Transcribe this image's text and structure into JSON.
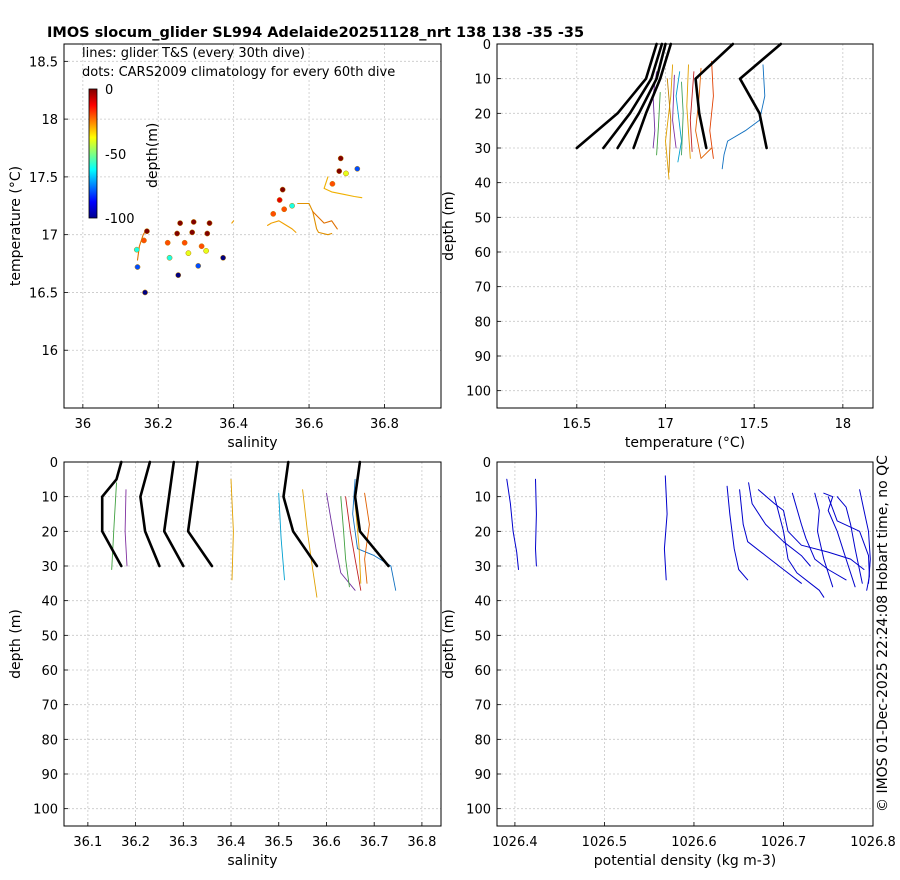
{
  "title": "IMOS slocum_glider SL994 Adelaide20251128_nrt 138  138  -35  -35",
  "legend": {
    "line1": "lines: glider T&S (every 30th dive)",
    "line2": "dots: CARS2009 climatology for every 60th dive"
  },
  "colorbar": {
    "label": "depth(m)",
    "ticks": [
      "0",
      "-50",
      "-100"
    ],
    "range": [
      -100,
      0
    ]
  },
  "footer": "© IMOS 01-Dec-2025 22:24:08 Hobart time, no QC",
  "colors": {
    "thick": "#000000",
    "density": "#0000cc",
    "grid": "#c8c8c8"
  },
  "chart_data": [
    {
      "id": "ts",
      "type": "scatter",
      "xlabel": "salinity",
      "ylabel": "temperature (°C)",
      "xlim": [
        35.95,
        36.95
      ],
      "ylim": [
        15.5,
        18.65
      ],
      "xticks": [
        36,
        36.2,
        36.4,
        36.6,
        36.8
      ],
      "yticks": [
        16,
        16.5,
        17,
        17.5,
        18,
        18.5
      ],
      "climatology_dots": [
        {
          "s": 36.165,
          "t": 16.5,
          "d": -100
        },
        {
          "s": 36.145,
          "t": 16.72,
          "d": -80
        },
        {
          "s": 36.143,
          "t": 16.87,
          "d": -60
        },
        {
          "s": 36.162,
          "t": 16.95,
          "d": -20
        },
        {
          "s": 36.17,
          "t": 17.03,
          "d": 0
        },
        {
          "s": 36.23,
          "t": 16.8,
          "d": -60
        },
        {
          "s": 36.225,
          "t": 16.93,
          "d": -20
        },
        {
          "s": 36.25,
          "t": 17.01,
          "d": 0
        },
        {
          "s": 36.258,
          "t": 17.1,
          "d": 0
        },
        {
          "s": 36.253,
          "t": 16.65,
          "d": -100
        },
        {
          "s": 36.27,
          "t": 16.93,
          "d": -20
        },
        {
          "s": 36.28,
          "t": 16.84,
          "d": -40
        },
        {
          "s": 36.29,
          "t": 17.02,
          "d": 0
        },
        {
          "s": 36.294,
          "t": 17.11,
          "d": 0
        },
        {
          "s": 36.306,
          "t": 16.73,
          "d": -80
        },
        {
          "s": 36.315,
          "t": 16.9,
          "d": -20
        },
        {
          "s": 36.327,
          "t": 16.86,
          "d": -40
        },
        {
          "s": 36.33,
          "t": 17.01,
          "d": 0
        },
        {
          "s": 36.336,
          "t": 17.1,
          "d": 0
        },
        {
          "s": 36.372,
          "t": 16.8,
          "d": -100
        },
        {
          "s": 36.505,
          "t": 17.18,
          "d": -20
        },
        {
          "s": 36.522,
          "t": 17.3,
          "d": -10
        },
        {
          "s": 36.53,
          "t": 17.39,
          "d": 0
        },
        {
          "s": 36.534,
          "t": 17.22,
          "d": -20
        },
        {
          "s": 36.555,
          "t": 17.25,
          "d": -60
        },
        {
          "s": 36.662,
          "t": 17.44,
          "d": -20
        },
        {
          "s": 36.68,
          "t": 17.55,
          "d": 0
        },
        {
          "s": 36.684,
          "t": 17.66,
          "d": 0
        },
        {
          "s": 36.698,
          "t": 17.53,
          "d": -40
        },
        {
          "s": 36.728,
          "t": 17.57,
          "d": -80
        }
      ],
      "glider_lines": [
        {
          "color": "#e07000",
          "pts": [
            [
              36.17,
              17.05
            ],
            [
              36.16,
              17.0
            ],
            [
              36.15,
              16.9
            ],
            [
              36.145,
              16.78
            ]
          ]
        },
        {
          "color": "#f0a000",
          "pts": [
            [
              36.395,
              17.1
            ],
            [
              36.4,
              17.12
            ]
          ]
        },
        {
          "color": "#f0a000",
          "pts": [
            [
              36.49,
              17.08
            ],
            [
              36.5,
              17.1
            ],
            [
              36.52,
              17.12
            ],
            [
              36.53,
              17.1
            ],
            [
              36.555,
              17.05
            ],
            [
              36.565,
              17.02
            ]
          ]
        },
        {
          "color": "#e09000",
          "pts": [
            [
              36.57,
              17.27
            ],
            [
              36.6,
              17.27
            ],
            [
              36.61,
              17.2
            ],
            [
              36.62,
              17.05
            ],
            [
              36.625,
              17.02
            ],
            [
              36.65,
              17.0
            ],
            [
              36.66,
              17.01
            ]
          ]
        },
        {
          "color": "#e07000",
          "pts": [
            [
              36.61,
              17.2
            ],
            [
              36.64,
              17.1
            ],
            [
              36.66,
              17.12
            ],
            [
              36.675,
              17.05
            ]
          ]
        },
        {
          "color": "#f0b000",
          "pts": [
            [
              36.65,
              17.5
            ],
            [
              36.64,
              17.4
            ],
            [
              36.66,
              17.37
            ],
            [
              36.69,
              17.35
            ],
            [
              36.72,
              17.33
            ],
            [
              36.74,
              17.32
            ]
          ]
        }
      ]
    },
    {
      "id": "temp_depth",
      "type": "line",
      "xlabel": "temperature (°C)",
      "ylabel": "depth (m)",
      "xlim": [
        16.05,
        18.17
      ],
      "ylim": [
        0,
        105
      ],
      "xticks": [
        16.5,
        17,
        17.5,
        18
      ],
      "yticks": [
        0,
        10,
        20,
        30,
        40,
        50,
        60,
        70,
        80,
        90,
        100
      ],
      "climatology_profiles": [
        {
          "t": [
            16.95,
            16.89,
            16.73,
            16.5
          ],
          "z": [
            0,
            10,
            20,
            30
          ]
        },
        {
          "t": [
            16.98,
            16.92,
            16.8,
            16.65
          ],
          "z": [
            0,
            10,
            20,
            30
          ]
        },
        {
          "t": [
            17.0,
            16.95,
            16.85,
            16.73
          ],
          "z": [
            0,
            10,
            20,
            30
          ]
        },
        {
          "t": [
            17.03,
            16.97,
            16.89,
            16.82
          ],
          "z": [
            0,
            10,
            20,
            30
          ]
        },
        {
          "t": [
            17.38,
            17.17,
            17.19,
            17.23
          ],
          "z": [
            0,
            10,
            20,
            30
          ]
        },
        {
          "t": [
            17.65,
            17.42,
            17.53,
            17.57
          ],
          "z": [
            0,
            10,
            20,
            30
          ]
        }
      ],
      "glider_profiles": [
        {
          "color": "#7030a0",
          "t": [
            16.95,
            16.93,
            16.94,
            16.93
          ],
          "z": [
            8,
            15,
            25,
            30
          ]
        },
        {
          "color": "#40a040",
          "t": [
            16.97,
            16.96,
            16.95
          ],
          "z": [
            14,
            24,
            32
          ]
        },
        {
          "color": "#e0a000",
          "t": [
            17.04,
            17.03,
            17.0,
            17.02
          ],
          "z": [
            6,
            15,
            28,
            39
          ]
        },
        {
          "color": "#c08000",
          "t": [
            17.01,
            17.03,
            17.02
          ],
          "z": [
            10,
            22,
            37
          ]
        },
        {
          "color": "#00a0d0",
          "t": [
            17.08,
            17.06,
            17.09,
            17.07
          ],
          "z": [
            8,
            15,
            28,
            34
          ]
        },
        {
          "color": "#8030a0",
          "t": [
            17.05,
            17.04,
            17.06
          ],
          "z": [
            9,
            22,
            30
          ]
        },
        {
          "color": "#40a060",
          "t": [
            17.09,
            17.1,
            17.09
          ],
          "z": [
            11,
            20,
            32
          ]
        },
        {
          "color": "#e0a000",
          "t": [
            17.13,
            17.12,
            17.14
          ],
          "z": [
            6,
            18,
            33
          ]
        },
        {
          "color": "#c02020",
          "t": [
            17.16,
            17.14,
            17.15
          ],
          "z": [
            8,
            22,
            31
          ]
        },
        {
          "color": "#e06000",
          "t": [
            17.2,
            17.19,
            17.17,
            17.2,
            17.26
          ],
          "z": [
            7,
            15,
            25,
            33,
            30
          ]
        },
        {
          "color": "#1070c0",
          "t": [
            17.55,
            17.56,
            17.53,
            17.45,
            17.35,
            17.33,
            17.32
          ],
          "z": [
            6,
            15,
            22,
            25,
            28,
            32,
            36
          ]
        },
        {
          "color": "#e04000",
          "t": [
            17.26,
            17.27,
            17.25,
            17.27
          ],
          "z": [
            5,
            15,
            25,
            33
          ]
        }
      ]
    },
    {
      "id": "sal_depth",
      "type": "line",
      "xlabel": "salinity",
      "ylabel": "depth (m)",
      "xlim": [
        36.05,
        36.84
      ],
      "ylim": [
        0,
        105
      ],
      "xticks": [
        36.1,
        36.2,
        36.3,
        36.4,
        36.5,
        36.6,
        36.7,
        36.8
      ],
      "yticks": [
        0,
        10,
        20,
        30,
        40,
        50,
        60,
        70,
        80,
        90,
        100
      ],
      "climatology_profiles": [
        {
          "s": [
            36.17,
            36.16,
            36.13,
            36.13,
            36.17
          ],
          "z": [
            0,
            5,
            10,
            20,
            30
          ]
        },
        {
          "s": [
            36.23,
            36.21,
            36.22,
            36.25
          ],
          "z": [
            0,
            10,
            20,
            30
          ]
        },
        {
          "s": [
            36.28,
            36.27,
            36.26,
            36.3
          ],
          "z": [
            0,
            10,
            20,
            30
          ]
        },
        {
          "s": [
            36.33,
            36.32,
            36.31,
            36.36
          ],
          "z": [
            0,
            10,
            20,
            30
          ]
        },
        {
          "s": [
            36.52,
            36.51,
            36.53,
            36.58
          ],
          "z": [
            0,
            10,
            20,
            30
          ]
        },
        {
          "s": [
            36.67,
            36.66,
            36.67,
            36.73
          ],
          "z": [
            0,
            10,
            20,
            30
          ]
        }
      ],
      "glider_profiles": [
        {
          "color": "#40a040",
          "s": [
            36.16,
            36.155,
            36.15
          ],
          "z": [
            6,
            18,
            31
          ]
        },
        {
          "color": "#8030a0",
          "s": [
            36.18,
            36.178,
            36.182
          ],
          "z": [
            8,
            20,
            30
          ]
        },
        {
          "color": "#e0a000",
          "s": [
            36.4,
            36.405,
            36.402
          ],
          "z": [
            5,
            20,
            34
          ]
        },
        {
          "color": "#00a0d0",
          "s": [
            36.5,
            36.505,
            36.512
          ],
          "z": [
            9,
            22,
            34
          ]
        },
        {
          "color": "#e0a000",
          "s": [
            36.55,
            36.56,
            36.57,
            36.58
          ],
          "z": [
            8,
            20,
            30,
            39
          ]
        },
        {
          "color": "#7030a0",
          "s": [
            36.6,
            36.61,
            36.62,
            36.63,
            36.66
          ],
          "z": [
            9,
            17,
            25,
            32,
            37
          ]
        },
        {
          "color": "#40a040",
          "s": [
            36.63,
            36.636,
            36.64,
            36.648
          ],
          "z": [
            10,
            20,
            28,
            36
          ]
        },
        {
          "color": "#c02020",
          "s": [
            36.64,
            36.65,
            36.66,
            36.672
          ],
          "z": [
            10,
            20,
            28,
            37
          ]
        },
        {
          "color": "#1070c0",
          "s": [
            36.66,
            36.655,
            36.665,
            36.7,
            36.735,
            36.745
          ],
          "z": [
            5,
            15,
            25,
            27,
            30,
            37
          ]
        },
        {
          "color": "#e06000",
          "s": [
            36.68,
            36.69,
            36.68,
            36.685
          ],
          "z": [
            9,
            18,
            28,
            35
          ]
        },
        {
          "color": "#e0a000",
          "s": [
            36.66,
            36.668,
            36.672
          ],
          "z": [
            12,
            24,
            35
          ]
        }
      ]
    },
    {
      "id": "dens_depth",
      "type": "line",
      "xlabel": "potential density (kg m-3)",
      "ylabel": "depth (m)",
      "xlim": [
        1026.38,
        1026.8
      ],
      "ylim": [
        0,
        105
      ],
      "xticks": [
        1026.4,
        1026.5,
        1026.6,
        1026.7,
        1026.8
      ],
      "yticks": [
        0,
        10,
        20,
        30,
        40,
        50,
        60,
        70,
        80,
        90,
        100
      ],
      "profiles": [
        {
          "rho": [
            1026.391,
            1026.395,
            1026.398,
            1026.402,
            1026.404
          ],
          "z": [
            5,
            12,
            20,
            26,
            31
          ]
        },
        {
          "rho": [
            1026.423,
            1026.424,
            1026.423,
            1026.424
          ],
          "z": [
            5,
            15,
            25,
            30
          ]
        },
        {
          "rho": [
            1026.568,
            1026.57,
            1026.567,
            1026.569
          ],
          "z": [
            4,
            15,
            25,
            34
          ]
        },
        {
          "rho": [
            1026.637,
            1026.64,
            1026.645,
            1026.65,
            1026.66
          ],
          "z": [
            7,
            15,
            25,
            31,
            34
          ]
        },
        {
          "rho": [
            1026.651,
            1026.655,
            1026.66,
            1026.68,
            1026.7,
            1026.72
          ],
          "z": [
            8,
            18,
            23,
            27,
            31,
            35
          ]
        },
        {
          "rho": [
            1026.661,
            1026.665,
            1026.68,
            1026.7,
            1026.72,
            1026.73
          ],
          "z": [
            6,
            12,
            18,
            23,
            27,
            30
          ]
        },
        {
          "rho": [
            1026.672,
            1026.69,
            1026.7,
            1026.705,
            1026.72,
            1026.75,
            1026.775,
            1026.79
          ],
          "z": [
            8,
            12,
            14,
            20,
            24,
            26,
            28,
            31
          ]
        },
        {
          "rho": [
            1026.71,
            1026.72,
            1026.725,
            1026.735,
            1026.75,
            1026.77
          ],
          "z": [
            9,
            18,
            22,
            28,
            31,
            34
          ]
        },
        {
          "rho": [
            1026.69,
            1026.7,
            1026.705,
            1026.715,
            1026.73,
            1026.74,
            1026.745
          ],
          "z": [
            10,
            20,
            28,
            32,
            35,
            37,
            39
          ]
        },
        {
          "rho": [
            1026.735,
            1026.74,
            1026.738,
            1026.745,
            1026.755
          ],
          "z": [
            9,
            14,
            20,
            28,
            36
          ]
        },
        {
          "rho": [
            1026.745,
            1026.755,
            1026.75,
            1026.76,
            1026.77,
            1026.78
          ],
          "z": [
            9,
            10,
            14,
            20,
            28,
            36
          ]
        },
        {
          "rho": [
            1026.76,
            1026.77,
            1026.775,
            1026.78,
            1026.788
          ],
          "z": [
            10,
            13,
            18,
            25,
            35
          ]
        },
        {
          "rho": [
            1026.75,
            1026.76,
            1026.785,
            1026.795,
            1026.796,
            1026.793
          ],
          "z": [
            10,
            17,
            20,
            27,
            33,
            37
          ]
        },
        {
          "rho": [
            1026.785,
            1026.79,
            1026.795,
            1026.797,
            1026.795
          ],
          "z": [
            8,
            14,
            20,
            28,
            35
          ]
        }
      ]
    }
  ]
}
